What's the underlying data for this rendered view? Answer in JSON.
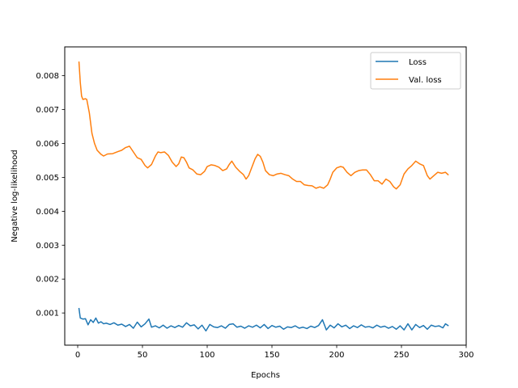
{
  "chart_data": {
    "type": "line",
    "title": "",
    "xlabel": "Epochs",
    "ylabel": "Negative log-likelihood",
    "xlim": [
      -10,
      300
    ],
    "ylim": [
      5e-05,
      0.00885
    ],
    "xticks": [
      0,
      50,
      100,
      150,
      200,
      250,
      300
    ],
    "yticks": [
      0.001,
      0.002,
      0.003,
      0.004,
      0.005,
      0.006,
      0.007,
      0.008
    ],
    "grid": false,
    "legend_position": "top-right",
    "series": [
      {
        "name": "Loss",
        "color": "#1f77b4",
        "points": [
          [
            1,
            0.00113
          ],
          [
            2,
            0.00085
          ],
          [
            4,
            0.00082
          ],
          [
            6,
            0.00083
          ],
          [
            8,
            0.00065
          ],
          [
            10,
            0.0008
          ],
          [
            12,
            0.00072
          ],
          [
            14,
            0.00085
          ],
          [
            16,
            0.0007
          ],
          [
            18,
            0.00074
          ],
          [
            20,
            0.00068
          ],
          [
            22,
            0.0007
          ],
          [
            25,
            0.00066
          ],
          [
            28,
            0.00071
          ],
          [
            31,
            0.00064
          ],
          [
            34,
            0.00067
          ],
          [
            37,
            0.0006
          ],
          [
            40,
            0.00066
          ],
          [
            43,
            0.00055
          ],
          [
            46,
            0.00073
          ],
          [
            49,
            0.00059
          ],
          [
            52,
            0.00068
          ],
          [
            55,
            0.00082
          ],
          [
            57,
            0.00058
          ],
          [
            60,
            0.00062
          ],
          [
            63,
            0.00056
          ],
          [
            66,
            0.00064
          ],
          [
            69,
            0.00055
          ],
          [
            72,
            0.00062
          ],
          [
            75,
            0.00057
          ],
          [
            78,
            0.00063
          ],
          [
            81,
            0.00058
          ],
          [
            84,
            0.00071
          ],
          [
            87,
            0.00062
          ],
          [
            90,
            0.00065
          ],
          [
            93,
            0.00053
          ],
          [
            96,
            0.00064
          ],
          [
            99,
            0.00047
          ],
          [
            102,
            0.00066
          ],
          [
            105,
            0.00059
          ],
          [
            108,
            0.00057
          ],
          [
            111,
            0.00062
          ],
          [
            114,
            0.00055
          ],
          [
            117,
            0.00066
          ],
          [
            120,
            0.00068
          ],
          [
            123,
            0.00058
          ],
          [
            126,
            0.00061
          ],
          [
            129,
            0.00055
          ],
          [
            132,
            0.00062
          ],
          [
            135,
            0.00058
          ],
          [
            138,
            0.00064
          ],
          [
            141,
            0.00056
          ],
          [
            144,
            0.00066
          ],
          [
            147,
            0.00054
          ],
          [
            150,
            0.00063
          ],
          [
            153,
            0.00058
          ],
          [
            156,
            0.00061
          ],
          [
            159,
            0.00052
          ],
          [
            162,
            0.00059
          ],
          [
            165,
            0.00057
          ],
          [
            168,
            0.00062
          ],
          [
            171,
            0.00055
          ],
          [
            174,
            0.00058
          ],
          [
            177,
            0.00054
          ],
          [
            180,
            0.00061
          ],
          [
            183,
            0.00057
          ],
          [
            186,
            0.00063
          ],
          [
            189,
            0.0008
          ],
          [
            192,
            0.0005
          ],
          [
            195,
            0.00064
          ],
          [
            198,
            0.00056
          ],
          [
            201,
            0.00068
          ],
          [
            204,
            0.00059
          ],
          [
            207,
            0.00064
          ],
          [
            210,
            0.00054
          ],
          [
            213,
            0.00062
          ],
          [
            216,
            0.00057
          ],
          [
            219,
            0.00065
          ],
          [
            222,
            0.00058
          ],
          [
            225,
            0.0006
          ],
          [
            228,
            0.00056
          ],
          [
            231,
            0.00064
          ],
          [
            234,
            0.00058
          ],
          [
            237,
            0.00061
          ],
          [
            240,
            0.00055
          ],
          [
            243,
            0.0006
          ],
          [
            246,
            0.00052
          ],
          [
            249,
            0.00062
          ],
          [
            252,
            0.0005
          ],
          [
            255,
            0.00068
          ],
          [
            258,
            0.0005
          ],
          [
            261,
            0.00066
          ],
          [
            264,
            0.00057
          ],
          [
            267,
            0.00063
          ],
          [
            270,
            0.00052
          ],
          [
            273,
            0.00064
          ],
          [
            276,
            0.0006
          ],
          [
            279,
            0.00062
          ],
          [
            282,
            0.00056
          ],
          [
            284,
            0.00068
          ],
          [
            286,
            0.00063
          ]
        ]
      },
      {
        "name": "Val. loss",
        "color": "#ff7f0e",
        "points": [
          [
            1,
            0.0084
          ],
          [
            2,
            0.0078
          ],
          [
            3,
            0.0074
          ],
          [
            4,
            0.0073
          ],
          [
            6,
            0.00732
          ],
          [
            7,
            0.0073
          ],
          [
            9,
            0.0069
          ],
          [
            11,
            0.0063
          ],
          [
            13,
            0.006
          ],
          [
            15,
            0.0058
          ],
          [
            18,
            0.00568
          ],
          [
            20,
            0.00563
          ],
          [
            23,
            0.00569
          ],
          [
            27,
            0.0057
          ],
          [
            31,
            0.00576
          ],
          [
            34,
            0.0058
          ],
          [
            37,
            0.00588
          ],
          [
            40,
            0.00592
          ],
          [
            43,
            0.00575
          ],
          [
            46,
            0.00558
          ],
          [
            49,
            0.00553
          ],
          [
            52,
            0.00535
          ],
          [
            54,
            0.00528
          ],
          [
            57,
            0.00538
          ],
          [
            60,
            0.00563
          ],
          [
            62,
            0.00575
          ],
          [
            64,
            0.00573
          ],
          [
            67,
            0.00575
          ],
          [
            70,
            0.00565
          ],
          [
            73,
            0.00545
          ],
          [
            76,
            0.00532
          ],
          [
            78,
            0.0054
          ],
          [
            80,
            0.0056
          ],
          [
            82,
            0.00558
          ],
          [
            84,
            0.00545
          ],
          [
            86,
            0.00528
          ],
          [
            89,
            0.00522
          ],
          [
            92,
            0.0051
          ],
          [
            95,
            0.00508
          ],
          [
            98,
            0.00518
          ],
          [
            100,
            0.00532
          ],
          [
            103,
            0.00537
          ],
          [
            106,
            0.00535
          ],
          [
            109,
            0.0053
          ],
          [
            112,
            0.0052
          ],
          [
            115,
            0.00525
          ],
          [
            117,
            0.00538
          ],
          [
            119,
            0.00548
          ],
          [
            122,
            0.0053
          ],
          [
            125,
            0.00518
          ],
          [
            128,
            0.00508
          ],
          [
            130,
            0.00495
          ],
          [
            132,
            0.00505
          ],
          [
            135,
            0.00535
          ],
          [
            137,
            0.00555
          ],
          [
            139,
            0.00568
          ],
          [
            141,
            0.00562
          ],
          [
            143,
            0.00545
          ],
          [
            145,
            0.0052
          ],
          [
            148,
            0.00508
          ],
          [
            151,
            0.00505
          ],
          [
            154,
            0.0051
          ],
          [
            157,
            0.00512
          ],
          [
            160,
            0.00508
          ],
          [
            163,
            0.00505
          ],
          [
            166,
            0.00495
          ],
          [
            169,
            0.00488
          ],
          [
            172,
            0.00488
          ],
          [
            175,
            0.00478
          ],
          [
            178,
            0.00476
          ],
          [
            181,
            0.00475
          ],
          [
            184,
            0.00468
          ],
          [
            187,
            0.00472
          ],
          [
            190,
            0.00468
          ],
          [
            193,
            0.00478
          ],
          [
            195,
            0.00495
          ],
          [
            197,
            0.00515
          ],
          [
            200,
            0.00528
          ],
          [
            203,
            0.00532
          ],
          [
            205,
            0.0053
          ],
          [
            208,
            0.00515
          ],
          [
            211,
            0.00505
          ],
          [
            214,
            0.00515
          ],
          [
            217,
            0.0052
          ],
          [
            220,
            0.00522
          ],
          [
            223,
            0.00522
          ],
          [
            226,
            0.00508
          ],
          [
            229,
            0.0049
          ],
          [
            232,
            0.0049
          ],
          [
            235,
            0.0048
          ],
          [
            238,
            0.00495
          ],
          [
            241,
            0.00488
          ],
          [
            244,
            0.00472
          ],
          [
            246,
            0.00466
          ],
          [
            249,
            0.00478
          ],
          [
            252,
            0.0051
          ],
          [
            255,
            0.00525
          ],
          [
            258,
            0.00535
          ],
          [
            261,
            0.00548
          ],
          [
            264,
            0.0054
          ],
          [
            267,
            0.00535
          ],
          [
            270,
            0.00505
          ],
          [
            272,
            0.00495
          ],
          [
            275,
            0.00505
          ],
          [
            278,
            0.00515
          ],
          [
            281,
            0.00512
          ],
          [
            284,
            0.00515
          ],
          [
            286,
            0.00508
          ]
        ]
      }
    ]
  }
}
